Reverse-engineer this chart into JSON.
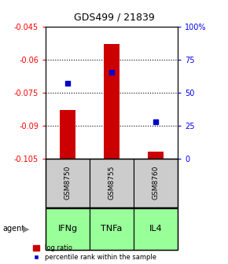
{
  "title": "GDS499 / 21839",
  "samples": [
    "GSM8750",
    "GSM8755",
    "GSM8760"
  ],
  "agents": [
    "IFNg",
    "TNFa",
    "IL4"
  ],
  "log_ratios": [
    -0.083,
    -0.053,
    -0.102
  ],
  "percentile_ranks": [
    57,
    65,
    28
  ],
  "bar_base": -0.105,
  "ylim_left": [
    -0.105,
    -0.045
  ],
  "ylim_right": [
    0,
    100
  ],
  "yticks_left": [
    -0.105,
    -0.09,
    -0.075,
    -0.06,
    -0.045
  ],
  "yticks_right": [
    0,
    25,
    50,
    75,
    100
  ],
  "ytick_labels_left": [
    "-0.105",
    "-0.09",
    "-0.075",
    "-0.06",
    "-0.045"
  ],
  "ytick_labels_right": [
    "0",
    "25",
    "50",
    "75",
    "100%"
  ],
  "bar_color": "#cc0000",
  "dot_color": "#0000cc",
  "agent_color": "#99ff99",
  "sample_box_color": "#cccccc",
  "legend_bar_label": "log ratio",
  "legend_dot_label": "percentile rank within the sample",
  "bar_width": 0.35
}
